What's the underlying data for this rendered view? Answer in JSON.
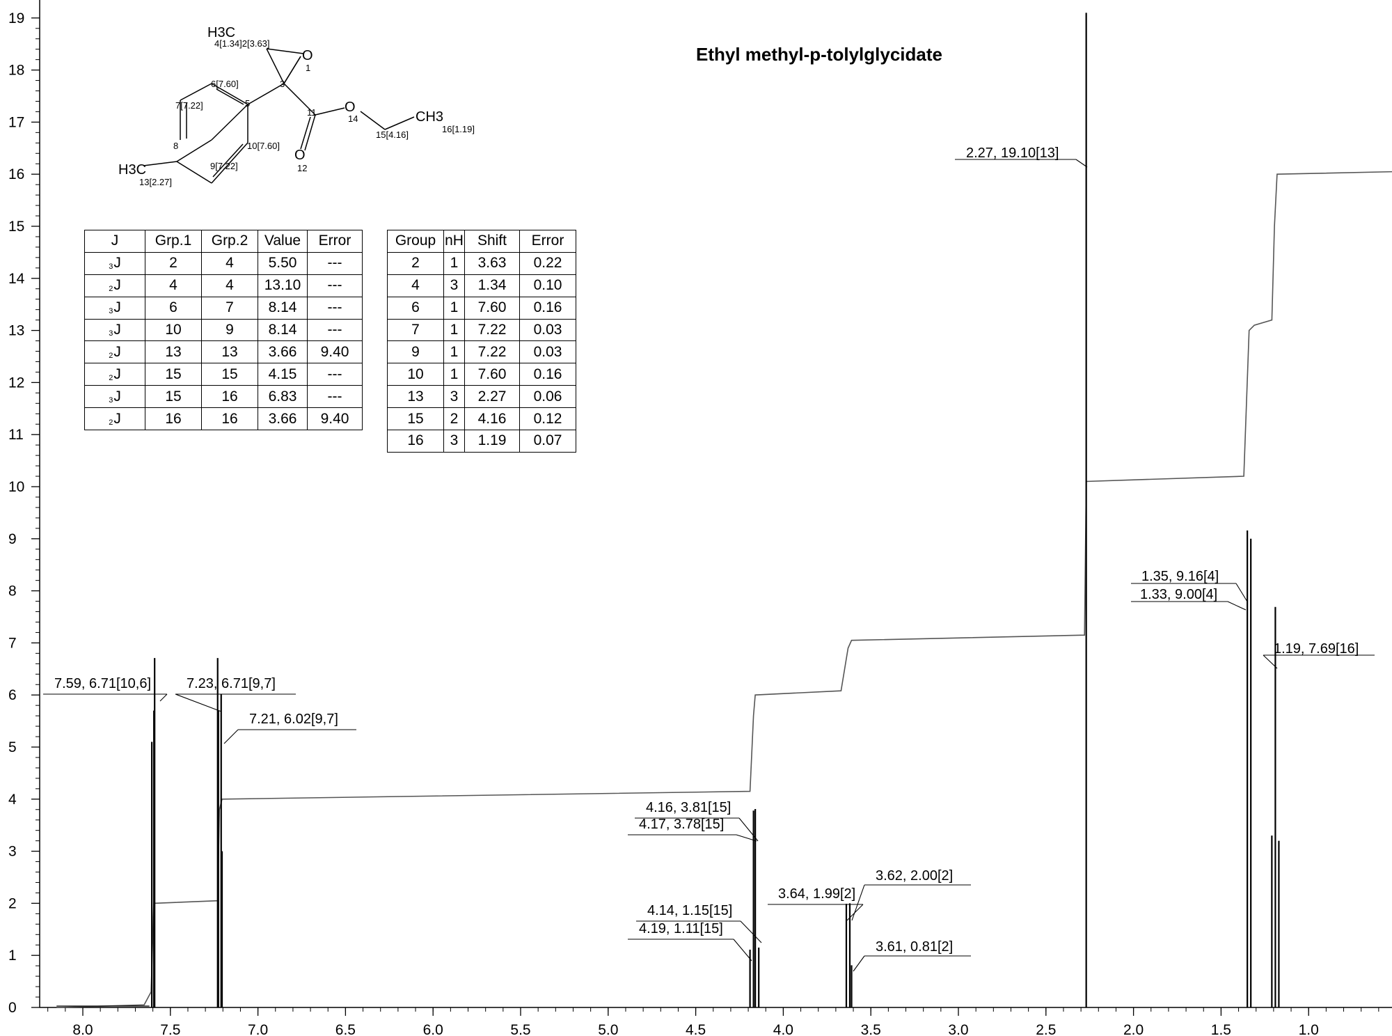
{
  "chart_data": {
    "type": "line",
    "title": "Ethyl methyl-p-tolylglycidate",
    "xlabel": "",
    "ylabel": "",
    "x_reversed": true,
    "xlim": [
      8.2,
      0.5
    ],
    "ylim": [
      0,
      19.5
    ],
    "x_ticks": [
      "8.0",
      "7.5",
      "7.0",
      "6.5",
      "6.0",
      "5.5",
      "5.0",
      "4.5",
      "4.0",
      "3.5",
      "3.0",
      "2.5",
      "2.0",
      "1.5",
      "1.0"
    ],
    "y_ticks": [
      "0",
      "1",
      "2",
      "3",
      "4",
      "5",
      "6",
      "7",
      "8",
      "9",
      "10",
      "11",
      "12",
      "13",
      "14",
      "15",
      "16",
      "17",
      "18",
      "19"
    ],
    "peaks": [
      {
        "x": 7.606,
        "y": 5.1
      },
      {
        "x": 7.594,
        "y": 5.7
      },
      {
        "x": 7.59,
        "y": 6.71
      },
      {
        "x": 7.23,
        "y": 6.71
      },
      {
        "x": 7.226,
        "y": 5.7
      },
      {
        "x": 7.21,
        "y": 6.02
      },
      {
        "x": 7.205,
        "y": 3.0
      },
      {
        "x": 4.19,
        "y": 1.11
      },
      {
        "x": 4.17,
        "y": 3.78
      },
      {
        "x": 4.16,
        "y": 3.81
      },
      {
        "x": 4.14,
        "y": 1.15
      },
      {
        "x": 3.64,
        "y": 1.99
      },
      {
        "x": 3.62,
        "y": 2.0
      },
      {
        "x": 3.61,
        "y": 0.81
      },
      {
        "x": 2.27,
        "y": 19.1
      },
      {
        "x": 1.35,
        "y": 9.16
      },
      {
        "x": 1.33,
        "y": 9.0
      },
      {
        "x": 1.21,
        "y": 3.3
      },
      {
        "x": 1.19,
        "y": 7.69
      },
      {
        "x": 1.17,
        "y": 3.2
      }
    ],
    "peak_labels": [
      {
        "text": "7.59, 6.71[10,6]",
        "x": 7.59,
        "y": 6.71
      },
      {
        "text": "7.23, 6.71[9,7]",
        "x": 7.23,
        "y": 6.71
      },
      {
        "text": "7.21, 6.02[9,7]",
        "x": 7.21,
        "y": 6.02
      },
      {
        "text": "4.16, 3.81[15]",
        "x": 4.16,
        "y": 3.81
      },
      {
        "text": "4.17, 3.78[15]",
        "x": 4.17,
        "y": 3.78
      },
      {
        "text": "4.14, 1.15[15]",
        "x": 4.14,
        "y": 1.15
      },
      {
        "text": "4.19, 1.11[15]",
        "x": 4.19,
        "y": 1.11
      },
      {
        "text": "3.64, 1.99[2]",
        "x": 3.64,
        "y": 1.99
      },
      {
        "text": "3.62, 2.00[2]",
        "x": 3.62,
        "y": 2.0
      },
      {
        "text": "3.61, 0.81[2]",
        "x": 3.61,
        "y": 0.81
      },
      {
        "text": "2.27, 19.10[13]",
        "x": 2.27,
        "y": 19.1
      },
      {
        "text": "1.35, 9.16[4]",
        "x": 1.35,
        "y": 9.16
      },
      {
        "text": "1.33, 9.00[4]",
        "x": 1.33,
        "y": 9.0
      },
      {
        "text": "1.19, 7.69[16]",
        "x": 1.19,
        "y": 7.69
      }
    ],
    "integral": [
      [
        8.15,
        0.0
      ],
      [
        7.65,
        0.05
      ],
      [
        7.61,
        0.3
      ],
      [
        7.595,
        2.0
      ],
      [
        7.23,
        2.05
      ],
      [
        7.22,
        3.8
      ],
      [
        7.205,
        4.0
      ],
      [
        4.19,
        4.15
      ],
      [
        4.17,
        5.6
      ],
      [
        4.16,
        6.0
      ],
      [
        3.67,
        6.08
      ],
      [
        3.63,
        6.9
      ],
      [
        3.61,
        7.05
      ],
      [
        2.28,
        7.15
      ],
      [
        2.27,
        10.1
      ],
      [
        1.37,
        10.2
      ],
      [
        1.34,
        13.0
      ],
      [
        1.31,
        13.1
      ],
      [
        1.21,
        13.2
      ],
      [
        1.195,
        15.0
      ],
      [
        1.18,
        16.0
      ],
      [
        0.5,
        16.05
      ]
    ],
    "coupling_table": {
      "headers": [
        "J",
        "Grp.1",
        "Grp.2",
        "Value",
        "Error"
      ],
      "rows": [
        [
          "3",
          "J",
          "2",
          "4",
          "5.50",
          "---"
        ],
        [
          "2",
          "J",
          "4",
          "4",
          "13.10",
          "---"
        ],
        [
          "3",
          "J",
          "6",
          "7",
          "8.14",
          "---"
        ],
        [
          "3",
          "J",
          "10",
          "9",
          "8.14",
          "---"
        ],
        [
          "2",
          "J",
          "13",
          "13",
          "3.66",
          "9.40"
        ],
        [
          "2",
          "J",
          "15",
          "15",
          "4.15",
          "---"
        ],
        [
          "3",
          "J",
          "15",
          "16",
          "6.83",
          "---"
        ],
        [
          "2",
          "J",
          "16",
          "16",
          "3.66",
          "9.40"
        ]
      ]
    },
    "shift_table": {
      "headers": [
        "Group",
        "nH",
        "Shift",
        "Error"
      ],
      "rows": [
        [
          "2",
          "1",
          "3.63",
          "0.22"
        ],
        [
          "4",
          "3",
          "1.34",
          "0.10"
        ],
        [
          "6",
          "1",
          "7.60",
          "0.16"
        ],
        [
          "7",
          "1",
          "7.22",
          "0.03"
        ],
        [
          "9",
          "1",
          "7.22",
          "0.03"
        ],
        [
          "10",
          "1",
          "7.60",
          "0.16"
        ],
        [
          "13",
          "3",
          "2.27",
          "0.06"
        ],
        [
          "15",
          "2",
          "4.16",
          "0.12"
        ],
        [
          "16",
          "3",
          "1.19",
          "0.07"
        ]
      ]
    },
    "structure_labels": {
      "h3c_top": "H3C",
      "c4_top": "4[1.34]2[3.63]",
      "o_ring": "O",
      "n1": "1",
      "c6": "6[7.60]",
      "n3": "3",
      "c7": "7[7.22]",
      "n5": "5",
      "c11": "11",
      "o_ester": "O",
      "n14": "14",
      "ch3_right": "CH3",
      "c16": "16[1.19]",
      "c15": "15[4.16]",
      "c10": "10[7.60]",
      "o_carbonyl": "O",
      "n12": "12",
      "n8": "8",
      "h3c_left": "H3C",
      "c9": "9[7.22]",
      "c13": "13[2.27]"
    }
  }
}
